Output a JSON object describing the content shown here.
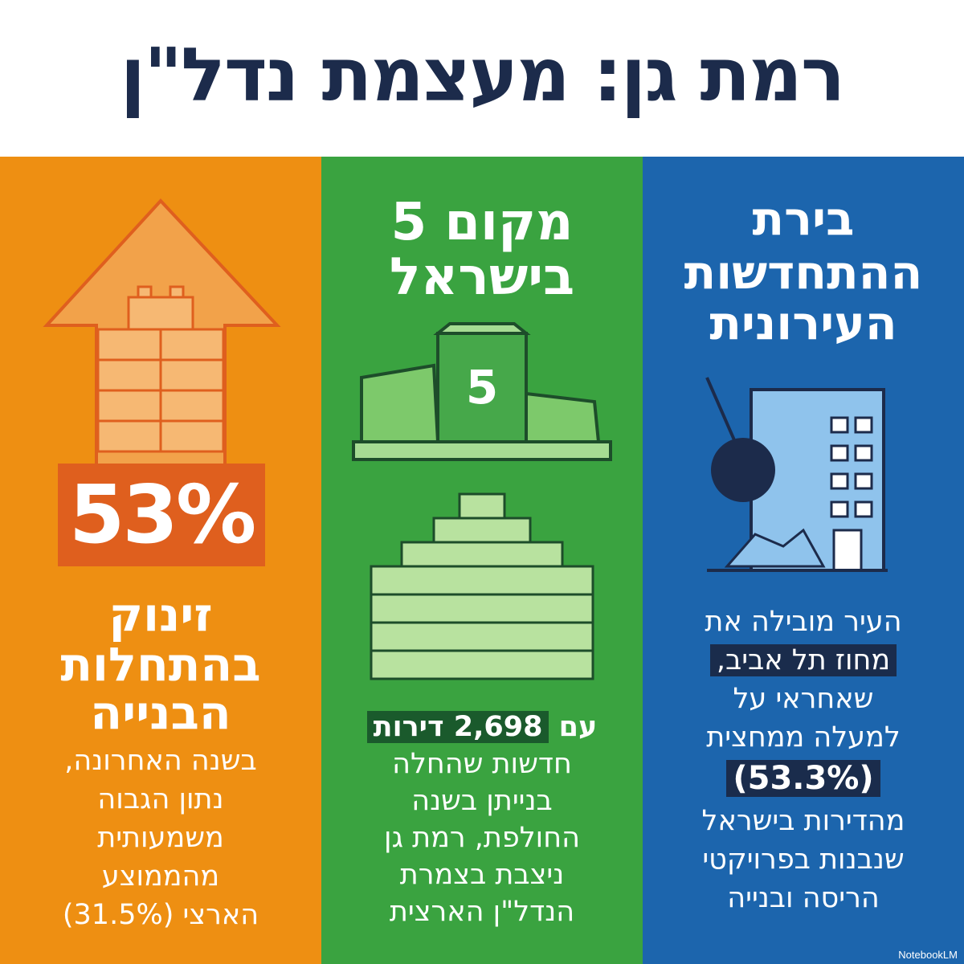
{
  "title": "רמת גן: מעצמת נדל\"ן",
  "colors": {
    "orange": "#ee8f12",
    "green": "#3aa340",
    "blue": "#1c65ad",
    "title": "#1c2b4b"
  },
  "orange": {
    "icon": "up-arrow-bricks-icon",
    "stat": "53%",
    "headline": [
      "זינוק",
      "בהתחלות",
      "הבנייה"
    ],
    "body": [
      "בשנה האחרונה,",
      "נתון הגבוה",
      "משמעותית",
      "מהממוצע",
      "הארצי (31.5%)"
    ]
  },
  "green": {
    "headline": [
      "מקום 5",
      "בישראל"
    ],
    "podium_label": "5",
    "icons": [
      "podium-icon",
      "apartment-building-icon"
    ],
    "body_first": {
      "pre": "עם",
      "highlight": "2,698 דירות"
    },
    "body": [
      "חדשות שהחלה",
      "בנייתן בשנה",
      "החולפת, רמת גן",
      "ניצבת בצמרת",
      "הנדל\"ן הארצית"
    ]
  },
  "blue": {
    "headline": [
      "בירת",
      "ההתחדשות",
      "העירונית"
    ],
    "icon": "wrecking-ball-building-icon",
    "body": [
      "העיר מובילה את",
      "מחוז תל אביב,",
      "שאחראי על",
      "למעלה ממחצית",
      "(53.3%)",
      "מהדירות בישראל",
      "שנבנות בפרויקטי",
      "הריסה ובנייה"
    ]
  },
  "brand": "NotebookLM"
}
